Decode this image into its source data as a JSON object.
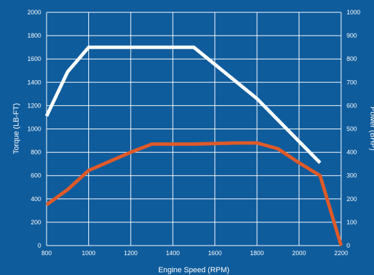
{
  "chart_data": {
    "type": "line",
    "title": "",
    "xlabel": "Engine Speed (RPM)",
    "ylabel": "Torque (LB-FT)",
    "y2label": "Power (BHP)",
    "xlim": [
      800,
      2200
    ],
    "ylim": [
      0,
      2000
    ],
    "y2lim": [
      0,
      1000
    ],
    "x_ticks": [
      800,
      1000,
      1200,
      1400,
      1600,
      1800,
      2000,
      2200
    ],
    "y_ticks": [
      0,
      200,
      400,
      600,
      800,
      1000,
      1200,
      1400,
      1600,
      1800,
      2000
    ],
    "y2_ticks": [
      0,
      100,
      200,
      300,
      400,
      500,
      600,
      700,
      800,
      900,
      1000
    ],
    "grid": true,
    "background_color": "#0f5c9c",
    "series": [
      {
        "axis": "left",
        "color": "#ffffff",
        "x": [
          800,
          900,
          1000,
          1500,
          1800,
          2100
        ],
        "y": [
          1110,
          1490,
          1700,
          1700,
          1260,
          710
        ]
      },
      {
        "axis": "right",
        "color": "#e05a28",
        "x": [
          800,
          900,
          1000,
          1200,
          1300,
          1500,
          1700,
          1800,
          1900,
          2000,
          2100,
          2200
        ],
        "y": [
          175,
          240,
          322,
          400,
          435,
          435,
          440,
          440,
          415,
          355,
          300,
          0
        ]
      }
    ]
  }
}
